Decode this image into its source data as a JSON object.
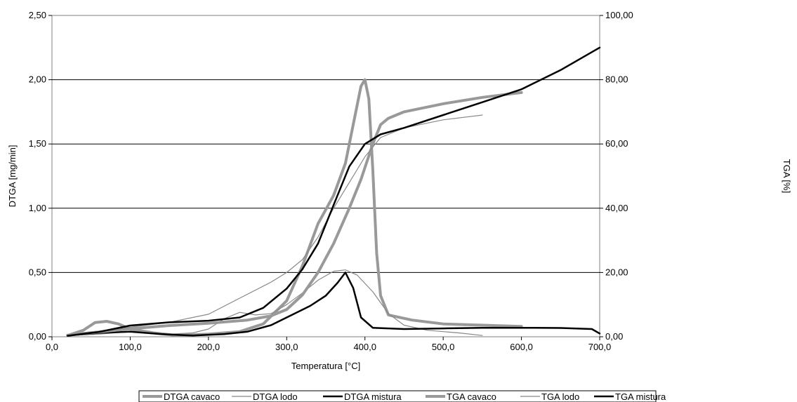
{
  "chart_data": {
    "type": "line",
    "title": "",
    "xlabel": "Temperatura [°C]",
    "ylabel_left": "DTGA [mg/min]",
    "ylabel_right": "TGA [%]",
    "xlim": [
      0,
      700
    ],
    "ylim_left": [
      0,
      2.5
    ],
    "ylim_right": [
      0,
      100
    ],
    "grid": "horizontal",
    "legend_position": "bottom",
    "x_ticks": [
      "0,0",
      "100,0",
      "200,0",
      "300,0",
      "400,0",
      "500,0",
      "600,0",
      "700,0"
    ],
    "y_left_ticks": [
      "0,00",
      "0,50",
      "1,00",
      "1,50",
      "2,00",
      "2,50"
    ],
    "y_right_ticks": [
      "0,00",
      "20,00",
      "40,00",
      "60,00",
      "80,00",
      "100,00"
    ],
    "series": [
      {
        "name": "DTGA cavaco",
        "axis": "left",
        "color": "#999999",
        "width": 4,
        "points": [
          [
            20,
            0.01
          ],
          [
            40,
            0.05
          ],
          [
            55,
            0.11
          ],
          [
            70,
            0.12
          ],
          [
            85,
            0.1
          ],
          [
            100,
            0.06
          ],
          [
            130,
            0.03
          ],
          [
            160,
            0.01
          ],
          [
            200,
            0.02
          ],
          [
            240,
            0.04
          ],
          [
            270,
            0.1
          ],
          [
            300,
            0.28
          ],
          [
            320,
            0.55
          ],
          [
            340,
            0.88
          ],
          [
            360,
            1.1
          ],
          [
            375,
            1.35
          ],
          [
            385,
            1.65
          ],
          [
            395,
            1.95
          ],
          [
            400,
            2.0
          ],
          [
            405,
            1.85
          ],
          [
            410,
            1.3
          ],
          [
            415,
            0.65
          ],
          [
            420,
            0.32
          ],
          [
            430,
            0.17
          ],
          [
            460,
            0.13
          ],
          [
            500,
            0.1
          ],
          [
            550,
            0.09
          ],
          [
            600,
            0.08
          ]
        ]
      },
      {
        "name": "DTGA lodo",
        "axis": "left",
        "color": "#888888",
        "width": 1.2,
        "points": [
          [
            20,
            0.01
          ],
          [
            60,
            0.02
          ],
          [
            100,
            0.04
          ],
          [
            150,
            0.02
          ],
          [
            180,
            0.03
          ],
          [
            200,
            0.06
          ],
          [
            220,
            0.14
          ],
          [
            240,
            0.19
          ],
          [
            260,
            0.17
          ],
          [
            280,
            0.18
          ],
          [
            300,
            0.25
          ],
          [
            320,
            0.34
          ],
          [
            340,
            0.44
          ],
          [
            360,
            0.51
          ],
          [
            375,
            0.52
          ],
          [
            390,
            0.48
          ],
          [
            410,
            0.35
          ],
          [
            430,
            0.18
          ],
          [
            450,
            0.09
          ],
          [
            480,
            0.05
          ],
          [
            520,
            0.03
          ],
          [
            550,
            0.01
          ]
        ]
      },
      {
        "name": "DTGA mistura",
        "axis": "left",
        "color": "#000000",
        "width": 2.5,
        "points": [
          [
            20,
            0.01
          ],
          [
            60,
            0.03
          ],
          [
            100,
            0.04
          ],
          [
            140,
            0.02
          ],
          [
            180,
            0.01
          ],
          [
            220,
            0.02
          ],
          [
            250,
            0.04
          ],
          [
            280,
            0.09
          ],
          [
            300,
            0.15
          ],
          [
            330,
            0.24
          ],
          [
            350,
            0.32
          ],
          [
            365,
            0.42
          ],
          [
            375,
            0.5
          ],
          [
            385,
            0.38
          ],
          [
            395,
            0.15
          ],
          [
            410,
            0.07
          ],
          [
            450,
            0.06
          ],
          [
            500,
            0.065
          ],
          [
            550,
            0.07
          ],
          [
            600,
            0.07
          ],
          [
            650,
            0.068
          ],
          [
            690,
            0.06
          ],
          [
            700,
            0.025
          ]
        ]
      },
      {
        "name": "TGA cavaco",
        "axis": "right",
        "color": "#999999",
        "width": 4,
        "points": [
          [
            20,
            0.5
          ],
          [
            60,
            1.5
          ],
          [
            100,
            2.5
          ],
          [
            150,
            3.5
          ],
          [
            200,
            4.2
          ],
          [
            250,
            5.2
          ],
          [
            280,
            6.5
          ],
          [
            300,
            8.5
          ],
          [
            320,
            13
          ],
          [
            340,
            20
          ],
          [
            360,
            29
          ],
          [
            380,
            40
          ],
          [
            395,
            49
          ],
          [
            410,
            60
          ],
          [
            420,
            66
          ],
          [
            430,
            68
          ],
          [
            450,
            70
          ],
          [
            500,
            72.5
          ],
          [
            550,
            74.5
          ],
          [
            600,
            76
          ]
        ]
      },
      {
        "name": "TGA lodo",
        "axis": "right",
        "color": "#888888",
        "width": 1.2,
        "points": [
          [
            20,
            0.3
          ],
          [
            60,
            1.5
          ],
          [
            100,
            3
          ],
          [
            150,
            4.5
          ],
          [
            200,
            7
          ],
          [
            240,
            12
          ],
          [
            280,
            17
          ],
          [
            300,
            20
          ],
          [
            320,
            24
          ],
          [
            340,
            31
          ],
          [
            360,
            40
          ],
          [
            380,
            48
          ],
          [
            400,
            56
          ],
          [
            420,
            62
          ],
          [
            450,
            65
          ],
          [
            500,
            67.5
          ],
          [
            550,
            69
          ]
        ]
      },
      {
        "name": "TGA mistura",
        "axis": "right",
        "color": "#000000",
        "width": 2.5,
        "points": [
          [
            20,
            0.3
          ],
          [
            60,
            1.5
          ],
          [
            100,
            3.5
          ],
          [
            150,
            4.5
          ],
          [
            200,
            5
          ],
          [
            240,
            6
          ],
          [
            270,
            9
          ],
          [
            300,
            15
          ],
          [
            320,
            21
          ],
          [
            340,
            29
          ],
          [
            360,
            41
          ],
          [
            380,
            53
          ],
          [
            400,
            60
          ],
          [
            420,
            63
          ],
          [
            450,
            65
          ],
          [
            500,
            69
          ],
          [
            550,
            73
          ],
          [
            600,
            77
          ],
          [
            650,
            83
          ],
          [
            700,
            90
          ]
        ]
      }
    ]
  }
}
